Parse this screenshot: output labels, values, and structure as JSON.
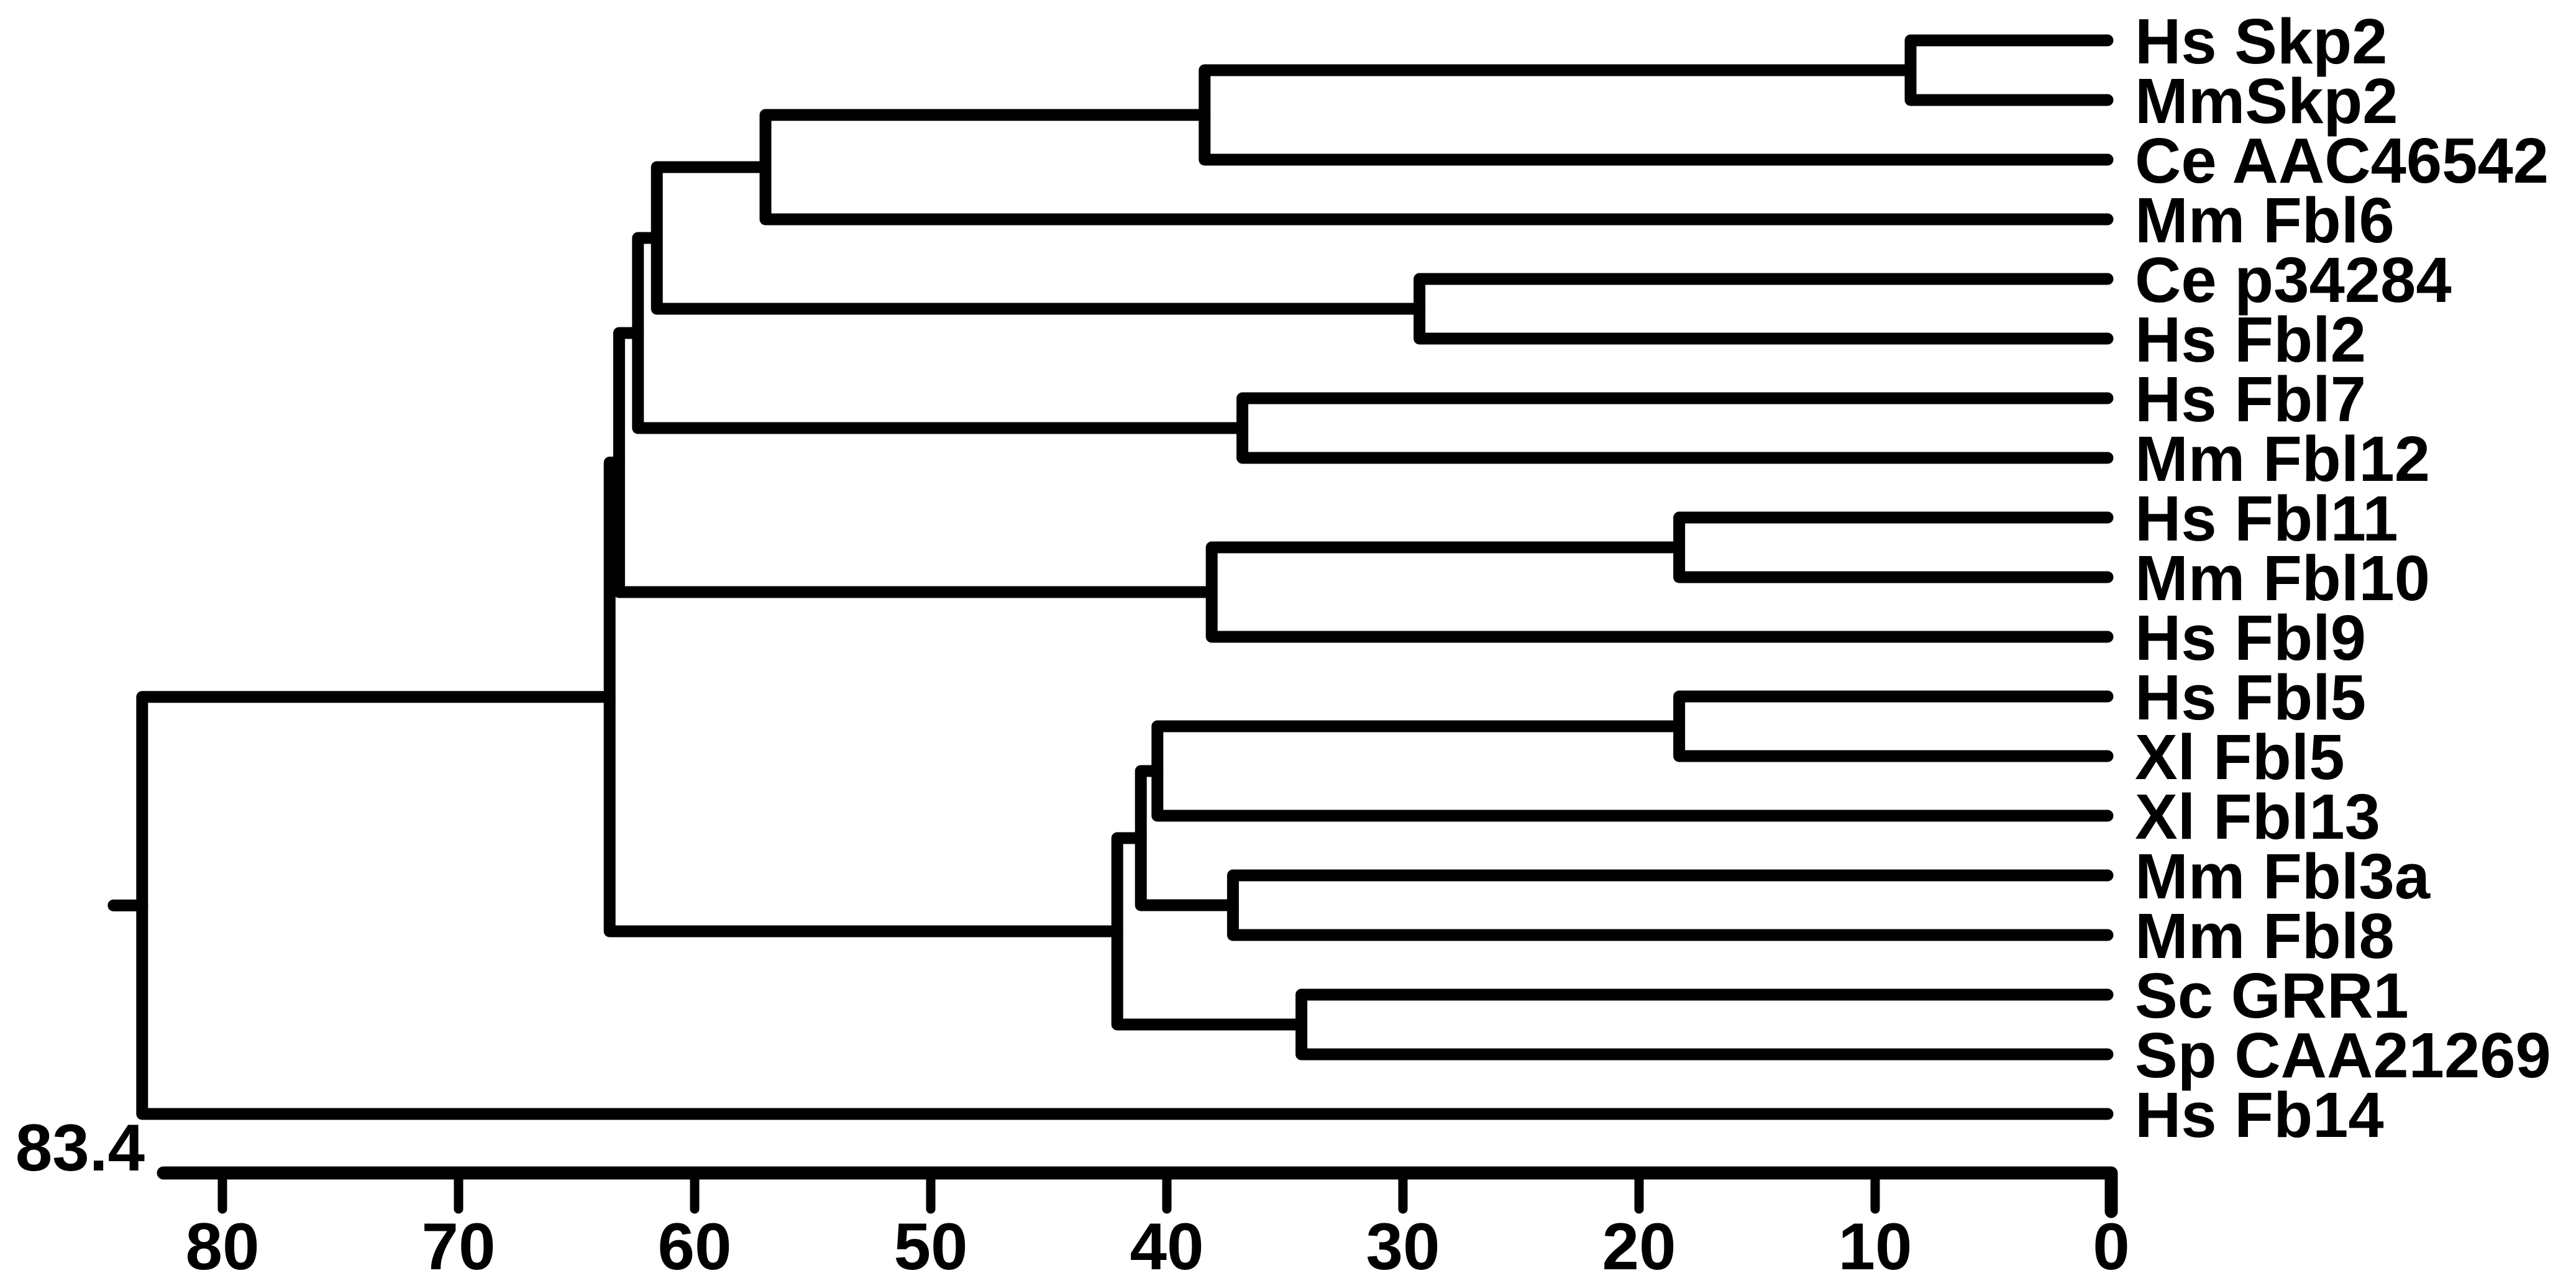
{
  "figure": {
    "kind": "phylogenetic-dendrogram",
    "ink_color": "#000000",
    "background_color": "#ffffff"
  },
  "chart_data": {
    "type": "table",
    "subtype": "dendrogram",
    "orientation": "right-to-left",
    "title": "",
    "xlabel": "",
    "ylabel": "",
    "distance_axis": {
      "ticks": [
        80,
        70,
        60,
        50,
        40,
        30,
        20,
        10,
        0
      ],
      "range": [
        0,
        83.4
      ],
      "root_distance_label": "83.4"
    },
    "leaves": [
      "Hs Skp2",
      "MmSkp2",
      "Ce AAC46542",
      "Mm Fbl6",
      "Ce p34284",
      "Hs Fbl2",
      "Hs Fbl7",
      "Mm Fbl12",
      "Hs Fbl11",
      "Mm Fbl10",
      "Hs Fbl9",
      "Hs Fbl5",
      "Xl Fbl5",
      "Xl Fbl13",
      "Mm Fbl3a",
      "Mm Fbl8",
      "Sc GRR1",
      "Sp CAA21269",
      "Hs Fb14"
    ],
    "tree": {
      "dist": 83.4,
      "children": [
        {
          "dist": 63.6,
          "children": [
            {
              "dist": 63.2,
              "children": [
                {
                  "dist": 62.4,
                  "children": [
                    {
                      "dist": 61.6,
                      "children": [
                        {
                          "dist": 57.0,
                          "children": [
                            {
                              "dist": 38.4,
                              "children": [
                                {
                                  "dist": 8.5,
                                  "children": [
                                    {
                                      "leaf": "Hs Skp2"
                                    },
                                    {
                                      "leaf": "MmSkp2"
                                    }
                                  ]
                                },
                                {
                                  "leaf": "Ce AAC46542"
                                }
                              ]
                            },
                            {
                              "leaf": "Mm Fbl6"
                            }
                          ]
                        },
                        {
                          "dist": 29.3,
                          "children": [
                            {
                              "leaf": "Ce p34284"
                            },
                            {
                              "leaf": "Hs Fbl2"
                            }
                          ]
                        }
                      ]
                    },
                    {
                      "dist": 36.8,
                      "children": [
                        {
                          "leaf": "Hs Fbl7"
                        },
                        {
                          "leaf": "Mm Fbl12"
                        }
                      ]
                    }
                  ]
                },
                {
                  "dist": 38.1,
                  "children": [
                    {
                      "dist": 18.3,
                      "children": [
                        {
                          "leaf": "Hs Fbl11"
                        },
                        {
                          "leaf": "Mm Fbl10"
                        }
                      ]
                    },
                    {
                      "leaf": "Hs Fbl9"
                    }
                  ]
                }
              ]
            },
            {
              "dist": 42.1,
              "children": [
                {
                  "dist": 41.1,
                  "children": [
                    {
                      "dist": 40.4,
                      "children": [
                        {
                          "dist": 18.3,
                          "children": [
                            {
                              "leaf": "Hs Fbl5"
                            },
                            {
                              "leaf": "Xl Fbl5"
                            }
                          ]
                        },
                        {
                          "leaf": "Xl Fbl13"
                        }
                      ]
                    },
                    {
                      "dist": 37.2,
                      "children": [
                        {
                          "leaf": "Mm Fbl3a"
                        },
                        {
                          "leaf": "Mm Fbl8"
                        }
                      ]
                    }
                  ]
                },
                {
                  "dist": 34.3,
                  "children": [
                    {
                      "leaf": "Sc GRR1"
                    },
                    {
                      "leaf": "Sp CAA21269"
                    }
                  ]
                }
              ]
            }
          ]
        },
        {
          "leaf": "Hs Fb14"
        }
      ]
    }
  }
}
